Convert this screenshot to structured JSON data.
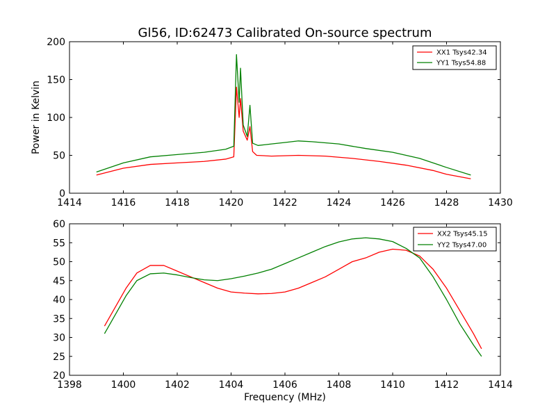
{
  "chart_data": [
    {
      "type": "line",
      "title": "Gl56, ID:62473 Calibrated On-source spectrum",
      "xlabel": "",
      "ylabel": "Power in Kelvin",
      "xlim": [
        1414,
        1430
      ],
      "ylim": [
        0,
        200
      ],
      "xticks": [
        "1414",
        "1416",
        "1418",
        "1420",
        "1422",
        "1424",
        "1426",
        "1428",
        "1430"
      ],
      "yticks": [
        "0",
        "50",
        "100",
        "150",
        "200"
      ],
      "legend": "top-right",
      "grid": false,
      "series": [
        {
          "name": "XX1 Tsys42.34",
          "color": "#ff0000",
          "points": [
            [
              1415.0,
              24
            ],
            [
              1416.0,
              33
            ],
            [
              1417.0,
              38
            ],
            [
              1418.0,
              40
            ],
            [
              1419.0,
              42
            ],
            [
              1419.8,
              45
            ],
            [
              1420.1,
              48
            ],
            [
              1420.2,
              140
            ],
            [
              1420.3,
              100
            ],
            [
              1420.35,
              125
            ],
            [
              1420.45,
              82
            ],
            [
              1420.6,
              70
            ],
            [
              1420.7,
              88
            ],
            [
              1420.8,
              55
            ],
            [
              1420.95,
              50
            ],
            [
              1421.5,
              49
            ],
            [
              1422.5,
              50
            ],
            [
              1423.5,
              49
            ],
            [
              1424.5,
              46
            ],
            [
              1425.5,
              42
            ],
            [
              1426.5,
              37
            ],
            [
              1427.5,
              30
            ],
            [
              1428.0,
              25
            ],
            [
              1428.9,
              19
            ]
          ]
        },
        {
          "name": "YY1 Tsys54.88",
          "color": "#008000",
          "points": [
            [
              1415.0,
              28
            ],
            [
              1416.0,
              40
            ],
            [
              1417.0,
              48
            ],
            [
              1418.0,
              51
            ],
            [
              1419.0,
              54
            ],
            [
              1419.8,
              58
            ],
            [
              1420.1,
              62
            ],
            [
              1420.2,
              183
            ],
            [
              1420.3,
              120
            ],
            [
              1420.35,
              165
            ],
            [
              1420.45,
              90
            ],
            [
              1420.6,
              75
            ],
            [
              1420.7,
              116
            ],
            [
              1420.8,
              66
            ],
            [
              1421.0,
              63
            ],
            [
              1421.5,
              65
            ],
            [
              1422.0,
              67
            ],
            [
              1422.5,
              69
            ],
            [
              1423.0,
              68
            ],
            [
              1424.0,
              65
            ],
            [
              1425.0,
              59
            ],
            [
              1426.0,
              54
            ],
            [
              1427.0,
              46
            ],
            [
              1428.0,
              34
            ],
            [
              1428.9,
              24
            ]
          ]
        }
      ]
    },
    {
      "type": "line",
      "title": "",
      "xlabel": "Frequency (MHz)",
      "ylabel": "",
      "xlim": [
        1398,
        1414
      ],
      "ylim": [
        20,
        60
      ],
      "xticks": [
        "1398",
        "1400",
        "1402",
        "1404",
        "1406",
        "1408",
        "1410",
        "1412",
        "1414"
      ],
      "yticks": [
        "20",
        "25",
        "30",
        "35",
        "40",
        "45",
        "50",
        "55",
        "60"
      ],
      "legend": "top-right",
      "grid": false,
      "series": [
        {
          "name": "XX2 Tsys45.15",
          "color": "#ff0000",
          "points": [
            [
              1399.3,
              33
            ],
            [
              1399.7,
              38
            ],
            [
              1400.1,
              43
            ],
            [
              1400.5,
              47
            ],
            [
              1401.0,
              49
            ],
            [
              1401.5,
              49
            ],
            [
              1402.0,
              47.5
            ],
            [
              1402.5,
              46
            ],
            [
              1403.0,
              44.5
            ],
            [
              1403.5,
              43
            ],
            [
              1404.0,
              42
            ],
            [
              1404.5,
              41.7
            ],
            [
              1405.0,
              41.5
            ],
            [
              1405.5,
              41.6
            ],
            [
              1406.0,
              42
            ],
            [
              1406.5,
              43
            ],
            [
              1407.0,
              44.5
            ],
            [
              1407.5,
              46
            ],
            [
              1408.0,
              48
            ],
            [
              1408.5,
              50
            ],
            [
              1409.0,
              51
            ],
            [
              1409.5,
              52.5
            ],
            [
              1410.0,
              53.3
            ],
            [
              1410.5,
              53
            ],
            [
              1411.0,
              51.5
            ],
            [
              1411.5,
              48
            ],
            [
              1412.0,
              43
            ],
            [
              1412.5,
              37
            ],
            [
              1413.0,
              31
            ],
            [
              1413.3,
              27
            ]
          ]
        },
        {
          "name": "YY2 Tsys47.00",
          "color": "#008000",
          "points": [
            [
              1399.3,
              31
            ],
            [
              1399.7,
              36
            ],
            [
              1400.1,
              41
            ],
            [
              1400.5,
              45
            ],
            [
              1401.0,
              46.8
            ],
            [
              1401.5,
              47
            ],
            [
              1402.0,
              46.5
            ],
            [
              1402.5,
              45.8
            ],
            [
              1403.0,
              45.2
            ],
            [
              1403.5,
              45
            ],
            [
              1404.0,
              45.5
            ],
            [
              1404.5,
              46.2
            ],
            [
              1405.0,
              47
            ],
            [
              1405.5,
              48
            ],
            [
              1406.0,
              49.5
            ],
            [
              1406.5,
              51
            ],
            [
              1407.0,
              52.5
            ],
            [
              1407.5,
              54
            ],
            [
              1408.0,
              55.2
            ],
            [
              1408.5,
              56
            ],
            [
              1409.0,
              56.3
            ],
            [
              1409.5,
              56
            ],
            [
              1410.0,
              55.3
            ],
            [
              1410.5,
              53.5
            ],
            [
              1411.0,
              51
            ],
            [
              1411.5,
              46
            ],
            [
              1412.0,
              40
            ],
            [
              1412.5,
              33.5
            ],
            [
              1413.0,
              28
            ],
            [
              1413.3,
              25
            ]
          ]
        }
      ]
    }
  ]
}
